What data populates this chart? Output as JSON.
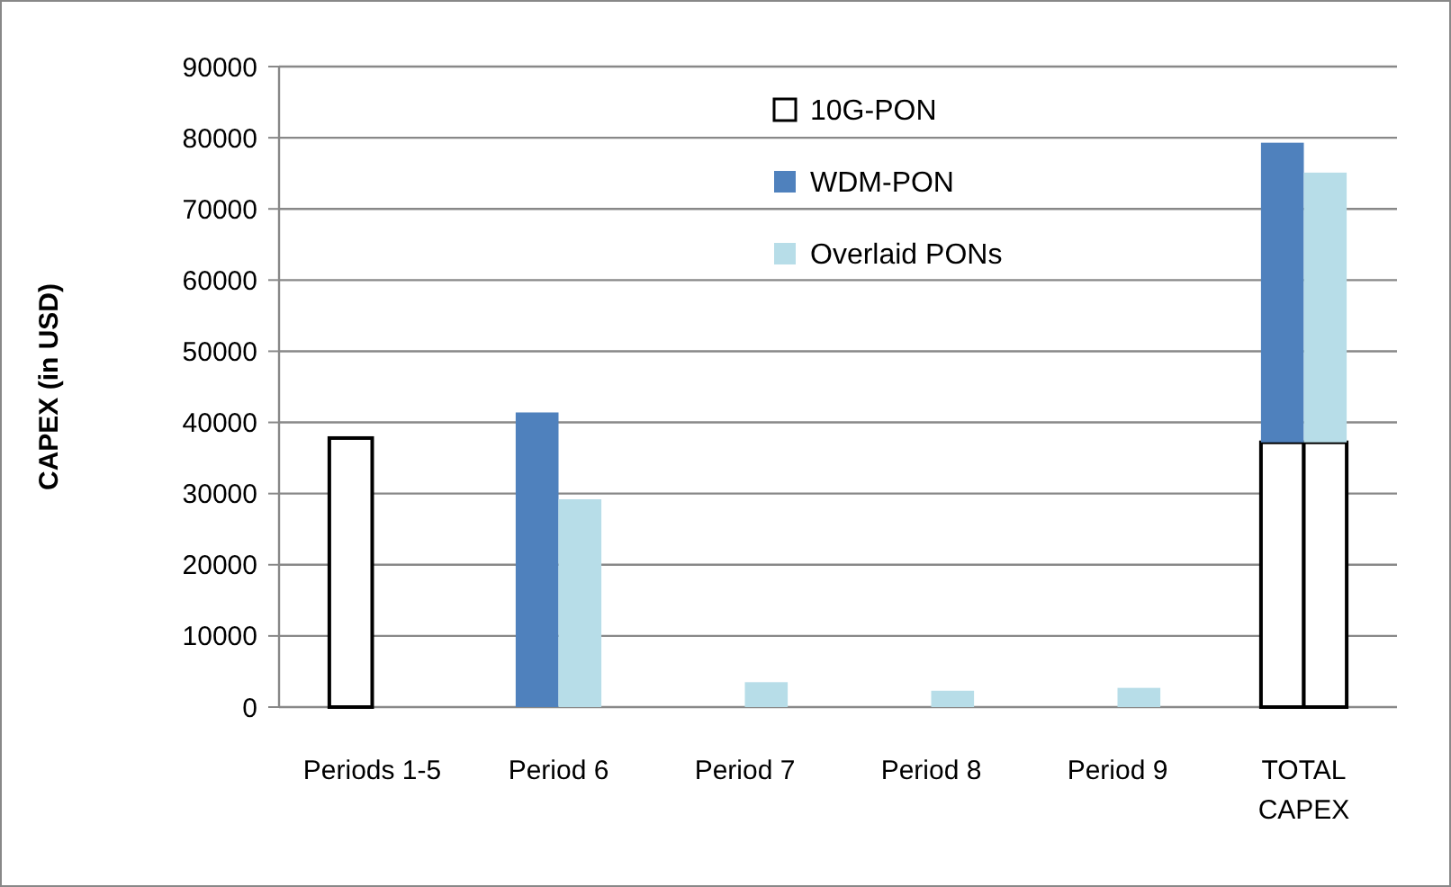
{
  "chart_data": {
    "type": "bar",
    "ylabel": "CAPEX (in USD)",
    "categories": [
      "Periods 1-5",
      "Period 6",
      "Period 7",
      "Period 8",
      "Period 9",
      "TOTAL CAPEX"
    ],
    "series": [
      {
        "name": "10G-PON",
        "color": "#ffffff",
        "values": [
          37800,
          null,
          null,
          null,
          null,
          37200
        ]
      },
      {
        "color": "#ffffff",
        "values": [
          null,
          null,
          null,
          null,
          null,
          37200
        ]
      },
      {
        "name": "WDM-PON",
        "color": "#4f81bd",
        "values": [
          null,
          41400,
          null,
          null,
          null,
          42100
        ],
        "base": [
          null,
          0,
          null,
          null,
          null,
          37200
        ]
      },
      {
        "name": "Overlaid PONs",
        "color": "#b7dde8",
        "values": [
          null,
          29200,
          3500,
          2300,
          2700,
          37900
        ],
        "base": [
          null,
          0,
          0,
          0,
          0,
          37200
        ]
      }
    ],
    "ylim": [
      0,
      90000
    ],
    "yticks": [
      0,
      10000,
      20000,
      30000,
      40000,
      50000,
      60000,
      70000,
      80000,
      90000
    ],
    "grid": "y",
    "legend": "top"
  }
}
